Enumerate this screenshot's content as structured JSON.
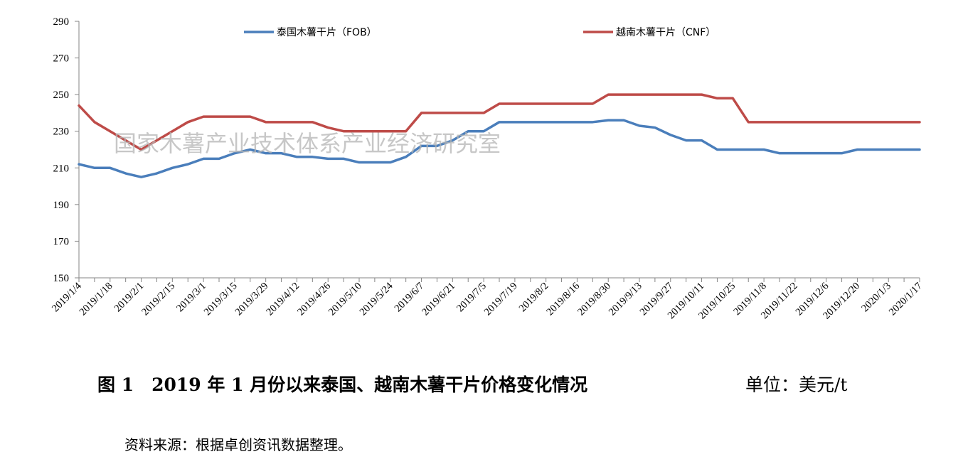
{
  "chart_data": {
    "type": "line",
    "y_axis": {
      "min": 150,
      "max": 290,
      "step": 20,
      "ticks": [
        "150",
        "170",
        "190",
        "210",
        "230",
        "250",
        "270",
        "290"
      ]
    },
    "x_tick_labels": [
      "2019/1/4",
      "2019/1/18",
      "2019/2/1",
      "2019/2/15",
      "2019/3/1",
      "2019/3/15",
      "2019/3/29",
      "2019/4/12",
      "2019/4/26",
      "2019/5/10",
      "2019/5/24",
      "2019/6/7",
      "2019/6/21",
      "2019/7/5",
      "2019/7/19",
      "2019/8/2",
      "2019/8/16",
      "2019/8/30",
      "2019/9/13",
      "2019/9/27",
      "2019/10/11",
      "2019/10/25",
      "2019/11/8",
      "2019/11/22",
      "2019/12/6",
      "2019/12/20",
      "2020/1/3",
      "2020/1/17"
    ],
    "x": [
      "2019/1/4",
      "2019/1/11",
      "2019/1/18",
      "2019/1/25",
      "2019/2/1",
      "2019/2/8",
      "2019/2/15",
      "2019/2/22",
      "2019/3/1",
      "2019/3/8",
      "2019/3/15",
      "2019/3/22",
      "2019/3/29",
      "2019/4/5",
      "2019/4/12",
      "2019/4/19",
      "2019/4/26",
      "2019/5/3",
      "2019/5/10",
      "2019/5/17",
      "2019/5/24",
      "2019/5/31",
      "2019/6/7",
      "2019/6/14",
      "2019/6/21",
      "2019/6/28",
      "2019/7/5",
      "2019/7/12",
      "2019/7/19",
      "2019/7/26",
      "2019/8/2",
      "2019/8/9",
      "2019/8/16",
      "2019/8/23",
      "2019/8/30",
      "2019/9/6",
      "2019/9/13",
      "2019/9/20",
      "2019/9/27",
      "2019/10/4",
      "2019/10/11",
      "2019/10/18",
      "2019/10/25",
      "2019/11/1",
      "2019/11/8",
      "2019/11/15",
      "2019/11/22",
      "2019/11/29",
      "2019/12/6",
      "2019/12/13",
      "2019/12/20",
      "2019/12/27",
      "2020/1/3",
      "2020/1/10",
      "2020/1/17"
    ],
    "series": [
      {
        "name": "泰国木薯干片（FOB）",
        "color": "#4a7ebb",
        "values": [
          212,
          210,
          210,
          207,
          205,
          207,
          210,
          212,
          215,
          215,
          218,
          220,
          218,
          218,
          216,
          216,
          215,
          215,
          213,
          213,
          213,
          216,
          222,
          222,
          225,
          230,
          230,
          235,
          235,
          235,
          235,
          235,
          235,
          235,
          236,
          236,
          233,
          232,
          228,
          225,
          225,
          220,
          220,
          220,
          220,
          218,
          218,
          218,
          218,
          218,
          220,
          220,
          220,
          220,
          220
        ]
      },
      {
        "name": "越南木薯干片（CNF）",
        "color": "#be4b48",
        "values": [
          244,
          235,
          230,
          225,
          220,
          225,
          230,
          235,
          238,
          238,
          238,
          238,
          235,
          235,
          235,
          235,
          232,
          230,
          230,
          230,
          230,
          230,
          240,
          240,
          240,
          240,
          240,
          245,
          245,
          245,
          245,
          245,
          245,
          245,
          250,
          250,
          250,
          250,
          250,
          250,
          250,
          248,
          248,
          235,
          235,
          235,
          235,
          235,
          235,
          235,
          235,
          235,
          235,
          235,
          235
        ]
      }
    ],
    "legend_placement": "top",
    "grid": false
  },
  "watermark": "国家木薯产业技术体系产业经济研究室",
  "caption": {
    "title": "图 1　2019 年 1 月份以来泰国、越南木薯干片价格变化情况",
    "unit": "单位：美元/t"
  },
  "source": "资料来源：根据卓创资讯数据整理。"
}
